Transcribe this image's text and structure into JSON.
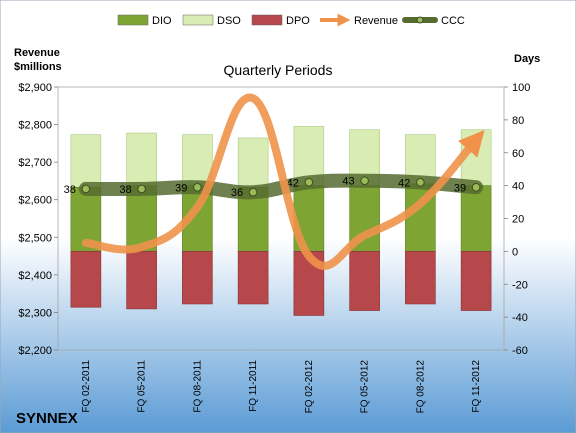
{
  "colors": {
    "dio": "#7ea534",
    "dso": "#d8ecb4",
    "dpo": "#b6474a",
    "revenue": "#f0924a",
    "ccc": "#556b2f",
    "ccc_marker": "#9bbb59",
    "bg_top": "#ffffff",
    "bg_bottom": "#5b9bd5"
  },
  "chart_data": {
    "type": "bar",
    "title": "Quarterly Periods",
    "company": "SYNNEX",
    "left_axis_label": [
      "Revenue",
      "$millions"
    ],
    "right_axis_label": "Days",
    "categories": [
      "FQ 02-2011",
      "FQ 05-2011",
      "FQ 08-2011",
      "FQ 11-2011",
      "FQ 02-2012",
      "FQ 05-2012",
      "FQ 08-2012",
      "FQ 11-2012"
    ],
    "left_axis": {
      "min": 2200,
      "max": 2900,
      "step": 100,
      "tick_labels": [
        "$2,200",
        "$2,300",
        "$2,400",
        "$2,500",
        "$2,600",
        "$2,700",
        "$2,800",
        "$2,900"
      ]
    },
    "right_axis": {
      "min": -60,
      "max": 100,
      "step": 20,
      "tick_labels": [
        "-60",
        "-40",
        "-20",
        "0",
        "20",
        "40",
        "60",
        "80",
        "100"
      ]
    },
    "legend": [
      "DIO",
      "DSO",
      "DPO",
      "Revenue",
      "CCC"
    ],
    "legend_position": "top",
    "series": [
      {
        "name": "DIO",
        "axis": "right",
        "stacked": true,
        "values": [
          39,
          40,
          40,
          39,
          40,
          40,
          41,
          40
        ]
      },
      {
        "name": "DSO",
        "axis": "right",
        "stacked": true,
        "values": [
          32,
          32,
          31,
          30,
          36,
          34,
          30,
          34
        ]
      },
      {
        "name": "DPO",
        "axis": "right",
        "stacked": true,
        "values": [
          -34,
          -35,
          -32,
          -32,
          -39,
          -36,
          -32,
          -36
        ]
      },
      {
        "name": "Revenue",
        "axis": "left",
        "type": "line",
        "values": [
          2485,
          2474,
          2580,
          2870,
          2450,
          2505,
          2590,
          2760
        ]
      },
      {
        "name": "CCC",
        "axis": "right",
        "type": "line",
        "values": [
          38,
          38,
          39,
          36,
          42,
          43,
          42,
          39
        ],
        "labels": [
          "38",
          "38",
          "39",
          "36",
          "42",
          "43",
          "42",
          "39"
        ]
      }
    ]
  }
}
